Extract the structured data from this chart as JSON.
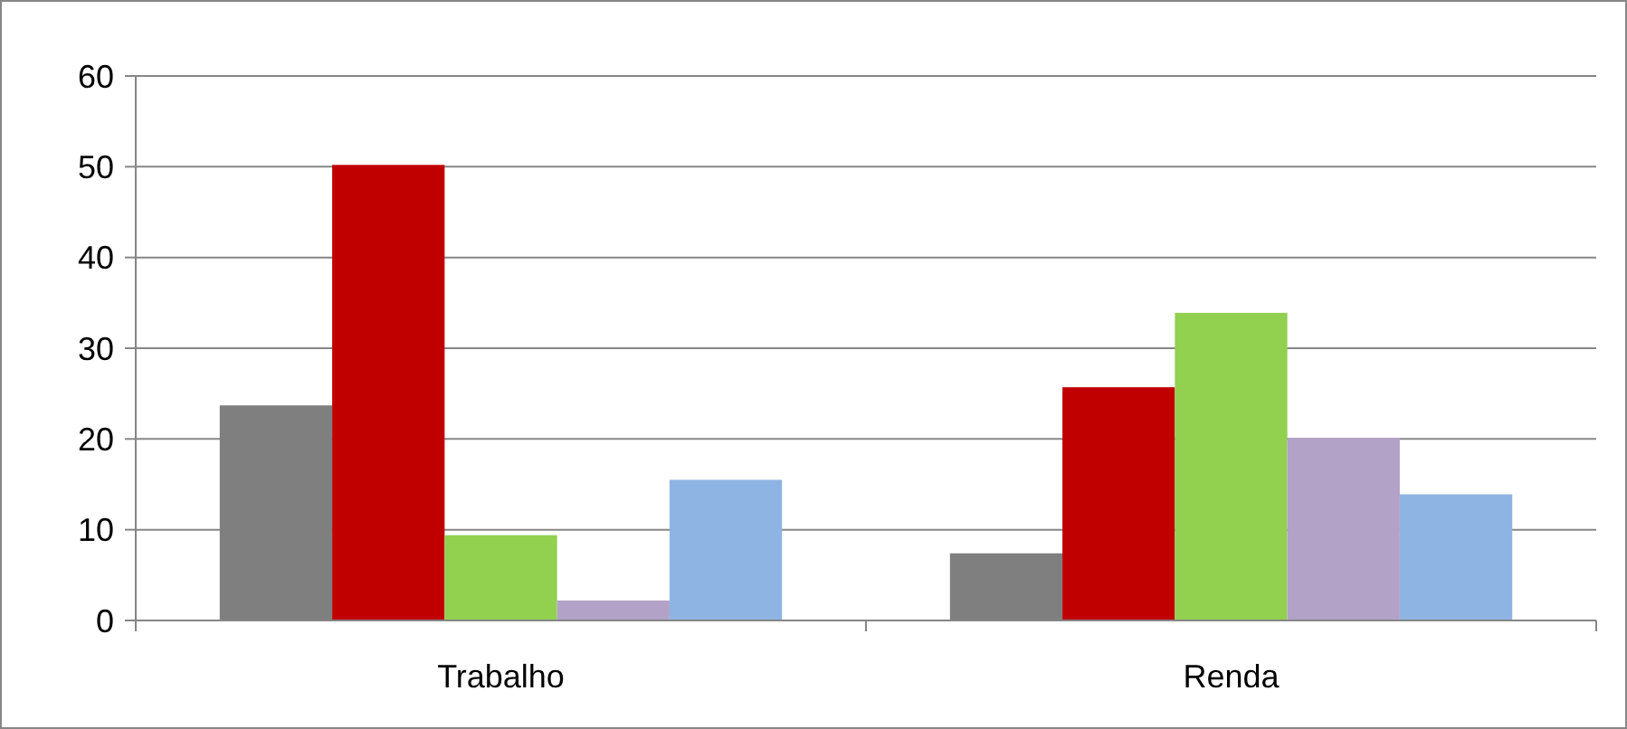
{
  "chart_data": {
    "type": "bar",
    "categories": [
      "Trabalho",
      "Renda"
    ],
    "series": [
      {
        "color": "#7f7f7f",
        "values": [
          23.7,
          7.4
        ]
      },
      {
        "color": "#c00000",
        "values": [
          50.2,
          25.7
        ]
      },
      {
        "color": "#92d050",
        "values": [
          9.4,
          33.9
        ]
      },
      {
        "color": "#b2a2c7",
        "values": [
          2.2,
          20.1
        ]
      },
      {
        "color": "#8eb4e3",
        "values": [
          15.5,
          13.9
        ]
      }
    ],
    "ylim": [
      0,
      60
    ],
    "yticks": [
      0,
      10,
      20,
      30,
      40,
      50,
      60
    ],
    "grid": "y"
  }
}
